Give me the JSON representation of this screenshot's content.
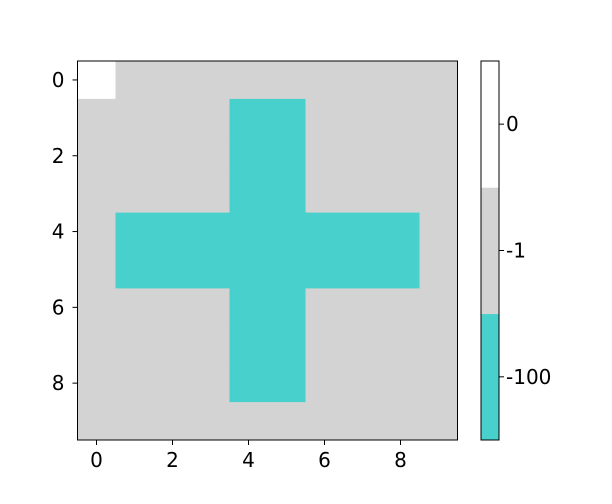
{
  "chart_data": {
    "type": "heatmap",
    "title": "",
    "xlabel": "",
    "ylabel": "",
    "x_ticks": [
      0,
      2,
      4,
      6,
      8
    ],
    "y_ticks": [
      0,
      2,
      4,
      6,
      8
    ],
    "x_tick_labels": [
      "0",
      "2",
      "4",
      "6",
      "8"
    ],
    "y_tick_labels": [
      "0",
      "2",
      "4",
      "6",
      "8"
    ],
    "xlim": [
      -0.5,
      9.5
    ],
    "ylim": [
      9.5,
      -0.5
    ],
    "grid": false,
    "legend": "colorbar-right",
    "values": [
      [
        0,
        -1,
        -1,
        -1,
        -1,
        -1,
        -1,
        -1,
        -1,
        -1
      ],
      [
        -1,
        -1,
        -1,
        -1,
        -100,
        -100,
        -1,
        -1,
        -1,
        -1
      ],
      [
        -1,
        -1,
        -1,
        -1,
        -100,
        -100,
        -1,
        -1,
        -1,
        -1
      ],
      [
        -1,
        -1,
        -1,
        -1,
        -100,
        -100,
        -1,
        -1,
        -1,
        -1
      ],
      [
        -1,
        -100,
        -100,
        -100,
        -100,
        -100,
        -100,
        -100,
        -100,
        -1
      ],
      [
        -1,
        -100,
        -100,
        -100,
        -100,
        -100,
        -100,
        -100,
        -100,
        -1
      ],
      [
        -1,
        -1,
        -1,
        -1,
        -100,
        -100,
        -1,
        -1,
        -1,
        -1
      ],
      [
        -1,
        -1,
        -1,
        -1,
        -100,
        -100,
        -1,
        -1,
        -1,
        -1
      ],
      [
        -1,
        -1,
        -1,
        -1,
        -100,
        -100,
        -1,
        -1,
        -1,
        -1
      ],
      [
        -1,
        -1,
        -1,
        -1,
        -1,
        -1,
        -1,
        -1,
        -1,
        -1
      ]
    ],
    "colorbar": {
      "levels": [
        {
          "value": -100,
          "label": "-100",
          "color": "#48d1cc"
        },
        {
          "value": -1,
          "label": "-1",
          "color": "#d3d3d3"
        },
        {
          "value": 0,
          "label": "0",
          "color": "#ffffff"
        }
      ]
    }
  }
}
